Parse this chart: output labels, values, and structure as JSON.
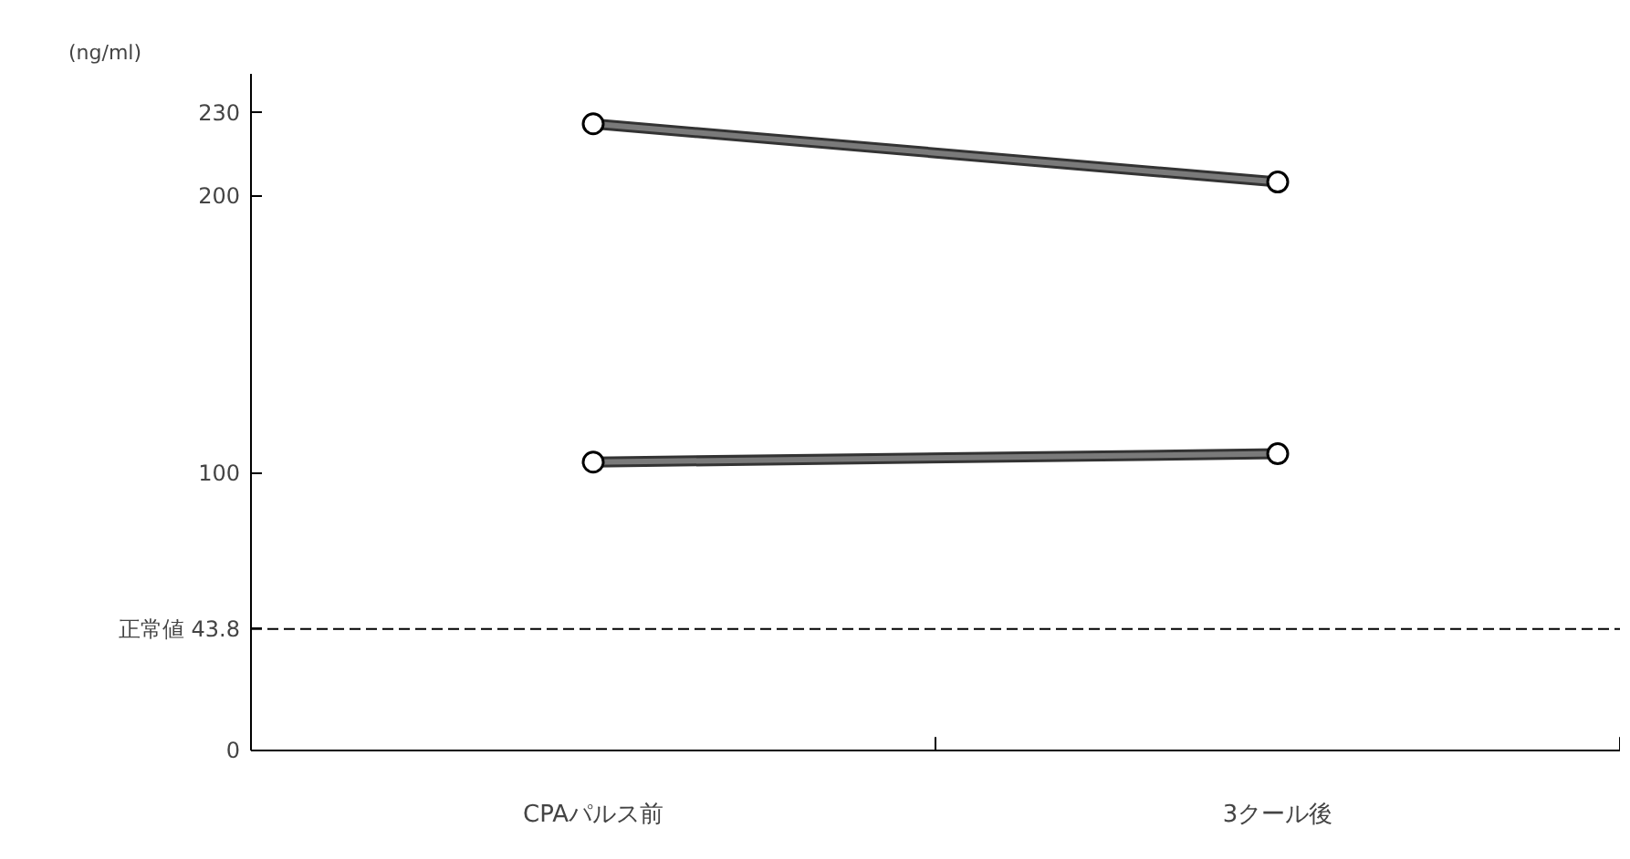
{
  "chart_data": {
    "type": "line",
    "ylabel": "(ng/ml)",
    "categories": [
      "CPAパルス前",
      "3クール後"
    ],
    "series": [
      {
        "color": "#7a7a7a",
        "values": [
          226,
          205
        ]
      },
      {
        "color": "#7a7a7a",
        "values": [
          104,
          107
        ]
      }
    ],
    "ylim": [
      0,
      244
    ],
    "yticks": [
      0,
      100,
      200,
      230
    ],
    "marker": "circle",
    "line_style": "solid",
    "grid": false,
    "ref_lines": [
      {
        "axis": "y",
        "value": 43.8,
        "label": "正常値 43.8",
        "color": "#000000",
        "line_style": "dashed"
      }
    ]
  }
}
